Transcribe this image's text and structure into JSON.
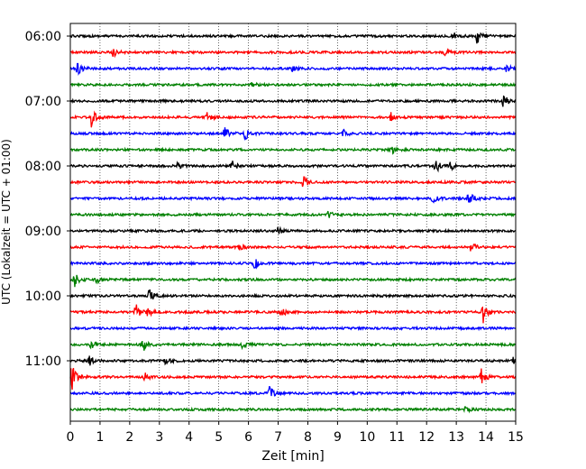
{
  "chart_data": {
    "type": "line",
    "title": "",
    "xlabel": "Zeit  [min]",
    "ylabel": "UTC (Lokalzeit = UTC + 01:00)",
    "xlim": [
      0,
      15
    ],
    "x_ticks": [
      0,
      1,
      2,
      3,
      4,
      5,
      6,
      7,
      8,
      9,
      10,
      11,
      12,
      13,
      14,
      15
    ],
    "y_tick_labels": [
      "06:00",
      "07:00",
      "08:00",
      "09:00",
      "10:00",
      "11:00"
    ],
    "trace_interval_minutes": 15,
    "first_trace_start": "06:00",
    "grid": "vertical dotted lines at each minute",
    "color_cycle": [
      "#000000",
      "#ff0000",
      "#0000ff",
      "#008000"
    ],
    "series": [
      {
        "start": "06:00",
        "color": "#000000",
        "events": [
          {
            "x": 12.9,
            "amp": 0.25
          },
          {
            "x": 13.7,
            "amp": 0.55
          }
        ]
      },
      {
        "start": "06:15",
        "color": "#ff0000",
        "events": [
          {
            "x": 1.45,
            "amp": 0.3
          },
          {
            "x": 12.6,
            "amp": 0.3
          }
        ]
      },
      {
        "start": "06:30",
        "color": "#0000ff",
        "events": [
          {
            "x": 0.25,
            "amp": 0.4
          },
          {
            "x": 7.5,
            "amp": 0.3
          },
          {
            "x": 14.7,
            "amp": 0.25
          }
        ]
      },
      {
        "start": "06:45",
        "color": "#008000",
        "events": [
          {
            "x": 6.1,
            "amp": 0.25
          }
        ]
      },
      {
        "start": "07:00",
        "color": "#000000",
        "events": [
          {
            "x": 14.6,
            "amp": 0.7
          }
        ]
      },
      {
        "start": "07:15",
        "color": "#ff0000",
        "events": [
          {
            "x": 0.7,
            "amp": 0.6
          },
          {
            "x": 4.6,
            "amp": 0.3
          },
          {
            "x": 10.8,
            "amp": 0.25
          }
        ]
      },
      {
        "start": "07:30",
        "color": "#0000ff",
        "events": [
          {
            "x": 5.2,
            "amp": 0.4
          },
          {
            "x": 5.9,
            "amp": 0.45
          },
          {
            "x": 9.2,
            "amp": 0.25
          }
        ]
      },
      {
        "start": "07:45",
        "color": "#008000",
        "events": [
          {
            "x": 10.8,
            "amp": 0.3
          }
        ]
      },
      {
        "start": "08:00",
        "color": "#000000",
        "events": [
          {
            "x": 3.6,
            "amp": 0.2
          },
          {
            "x": 5.4,
            "amp": 0.55
          },
          {
            "x": 12.3,
            "amp": 0.45
          },
          {
            "x": 12.8,
            "amp": 0.25
          }
        ]
      },
      {
        "start": "08:15",
        "color": "#ff0000",
        "events": [
          {
            "x": 7.85,
            "amp": 0.35
          }
        ]
      },
      {
        "start": "08:30",
        "color": "#0000ff",
        "events": [
          {
            "x": 12.2,
            "amp": 0.3
          },
          {
            "x": 13.4,
            "amp": 0.6
          }
        ]
      },
      {
        "start": "08:45",
        "color": "#008000",
        "events": [
          {
            "x": 8.7,
            "amp": 0.2
          }
        ]
      },
      {
        "start": "09:00",
        "color": "#000000",
        "events": [
          {
            "x": 7.0,
            "amp": 0.2
          }
        ]
      },
      {
        "start": "09:15",
        "color": "#ff0000",
        "events": [
          {
            "x": 5.7,
            "amp": 0.25
          },
          {
            "x": 13.5,
            "amp": 0.3
          }
        ]
      },
      {
        "start": "09:30",
        "color": "#0000ff",
        "events": [
          {
            "x": 6.2,
            "amp": 0.35
          }
        ]
      },
      {
        "start": "09:45",
        "color": "#008000",
        "events": [
          {
            "x": 0.15,
            "amp": 0.45
          },
          {
            "x": 0.9,
            "amp": 0.2
          }
        ]
      },
      {
        "start": "10:00",
        "color": "#000000",
        "events": [
          {
            "x": 2.65,
            "amp": 0.45
          }
        ]
      },
      {
        "start": "10:15",
        "color": "#ff0000",
        "events": [
          {
            "x": 2.2,
            "amp": 0.55
          },
          {
            "x": 2.6,
            "amp": 0.3
          },
          {
            "x": 7.1,
            "amp": 0.3
          },
          {
            "x": 13.9,
            "amp": 0.75
          }
        ]
      },
      {
        "start": "10:30",
        "color": "#0000ff",
        "events": []
      },
      {
        "start": "10:45",
        "color": "#008000",
        "events": [
          {
            "x": 0.7,
            "amp": 0.3
          },
          {
            "x": 2.45,
            "amp": 0.5
          },
          {
            "x": 5.8,
            "amp": 0.2
          }
        ]
      },
      {
        "start": "11:00",
        "color": "#000000",
        "events": [
          {
            "x": 0.65,
            "amp": 0.3
          },
          {
            "x": 3.2,
            "amp": 0.25
          },
          {
            "x": 14.95,
            "amp": 0.4
          }
        ]
      },
      {
        "start": "11:15",
        "color": "#ff0000",
        "events": [
          {
            "x": 0.05,
            "amp": 0.85
          },
          {
            "x": 2.5,
            "amp": 0.25
          },
          {
            "x": 13.85,
            "amp": 0.55
          }
        ]
      },
      {
        "start": "11:30",
        "color": "#0000ff",
        "events": [
          {
            "x": 6.7,
            "amp": 0.4
          }
        ]
      },
      {
        "start": "11:45",
        "color": "#008000",
        "events": [
          {
            "x": 13.3,
            "amp": 0.15
          }
        ]
      }
    ]
  }
}
